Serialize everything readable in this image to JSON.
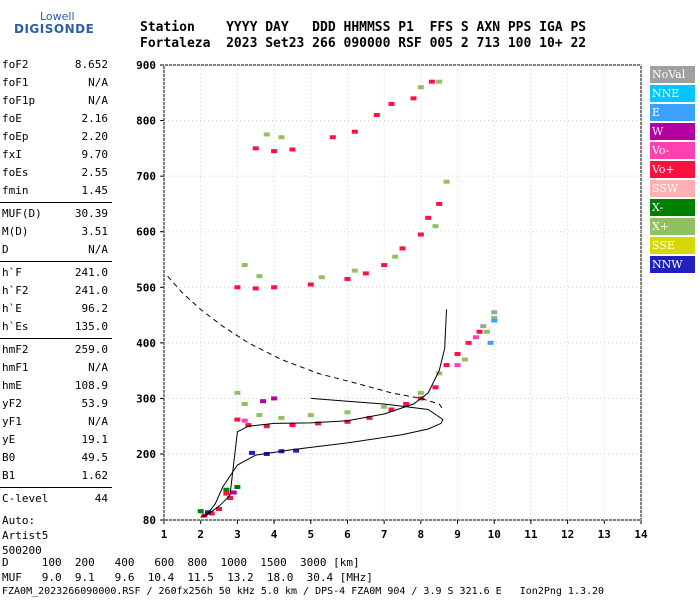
{
  "logo": {
    "line1": "Lowell",
    "line2": "DIGISONDE"
  },
  "header": {
    "line1": "Station    YYYY DAY   DDD HHMMSS P1  FFS S AXN PPS IGA PS",
    "line2": "Fortaleza  2023 Set23 266 090000 RSF 005 2 713 100 10+ 22"
  },
  "params": [
    {
      "name": "foF2",
      "value": "8.652"
    },
    {
      "name": "foF1",
      "value": "N/A"
    },
    {
      "name": "foF1p",
      "value": "N/A"
    },
    {
      "name": "foE",
      "value": "2.16"
    },
    {
      "name": "foEp",
      "value": "2.20"
    },
    {
      "name": "fxI",
      "value": "9.70"
    },
    {
      "name": "foEs",
      "value": "2.55"
    },
    {
      "name": "fmin",
      "value": "1.45"
    },
    {
      "name": "MUF(D)",
      "value": "30.39"
    },
    {
      "name": "M(D)",
      "value": "3.51"
    },
    {
      "name": "D",
      "value": "N/A"
    },
    {
      "name": "h`F",
      "value": "241.0"
    },
    {
      "name": "h`F2",
      "value": "241.0"
    },
    {
      "name": "h`E",
      "value": "96.2"
    },
    {
      "name": "h`Es",
      "value": "135.0"
    },
    {
      "name": "hmF2",
      "value": "259.0"
    },
    {
      "name": "hmF1",
      "value": "N/A"
    },
    {
      "name": "hmE",
      "value": "108.9"
    },
    {
      "name": "yF2",
      "value": "53.9"
    },
    {
      "name": "yF1",
      "value": "N/A"
    },
    {
      "name": "yE",
      "value": "19.1"
    },
    {
      "name": "B0",
      "value": "49.5"
    },
    {
      "name": "B1",
      "value": "1.62"
    },
    {
      "name": "C-level",
      "value": "44"
    }
  ],
  "auto": {
    "line1": "Auto:",
    "line2": "Artist5",
    "line3": "500200"
  },
  "legend": [
    {
      "label": "NoVal",
      "color": "#a0a0a0"
    },
    {
      "label": "NNE",
      "color": "#00c8ff"
    },
    {
      "label": "E",
      "color": "#3ca0ff"
    },
    {
      "label": "W",
      "color": "#b400a0"
    },
    {
      "label": "Vo-",
      "color": "#ff40b0"
    },
    {
      "label": "Vo+",
      "color": "#ff1040"
    },
    {
      "label": "SSW",
      "color": "#ffb0b0"
    },
    {
      "label": "X-",
      "color": "#008000"
    },
    {
      "label": "X+",
      "color": "#90c060"
    },
    {
      "label": "SSE",
      "color": "#d8d800"
    },
    {
      "label": "NNW",
      "color": "#2020c0"
    }
  ],
  "bottom": {
    "d_row": "D     100  200   400   600  800  1000  1500  3000 [km]",
    "muf_row": "MUF   9.0  9.1   9.6  10.4  11.5  13.2  18.0  30.4 [MHz]",
    "footer": "FZA0M_2023266090000.RSF / 260fx256h 50 kHz 5.0 km / DPS-4 FZA0M 904 / 3.9 S 321.6 E   Ion2Png 1.3.20"
  },
  "chart_data": {
    "type": "scatter",
    "xlim": [
      1,
      14
    ],
    "ylim": [
      80,
      900
    ],
    "x_ticks": [
      "1",
      "2",
      "3",
      "4",
      "5",
      "6",
      "7",
      "8",
      "9",
      "10",
      "11",
      "12",
      "13",
      "14"
    ],
    "y_ticks": [
      "80",
      "200",
      "300",
      "400",
      "500",
      "600",
      "700",
      "800",
      "900"
    ],
    "grid": true,
    "series": [
      {
        "name": "Vo+",
        "color": "#ff1040",
        "points": [
          [
            2.1,
            88
          ],
          [
            2.3,
            92
          ],
          [
            2.5,
            100
          ],
          [
            2.8,
            120
          ],
          [
            2.7,
            128
          ],
          [
            3.0,
            262
          ],
          [
            3.3,
            252
          ],
          [
            3.8,
            250
          ],
          [
            4.5,
            252
          ],
          [
            5.2,
            255
          ],
          [
            6.0,
            258
          ],
          [
            6.6,
            265
          ],
          [
            7.2,
            280
          ],
          [
            7.6,
            290
          ],
          [
            8.0,
            300
          ],
          [
            8.4,
            320
          ],
          [
            8.7,
            360
          ],
          [
            9.0,
            380
          ],
          [
            9.3,
            400
          ],
          [
            9.6,
            420
          ],
          [
            3.0,
            500
          ],
          [
            3.5,
            498
          ],
          [
            4.0,
            500
          ],
          [
            5.0,
            505
          ],
          [
            6.0,
            515
          ],
          [
            6.5,
            525
          ],
          [
            7.0,
            540
          ],
          [
            7.5,
            570
          ],
          [
            8.0,
            595
          ],
          [
            8.2,
            625
          ],
          [
            8.5,
            650
          ],
          [
            3.5,
            750
          ],
          [
            4.0,
            745
          ],
          [
            4.5,
            748
          ],
          [
            5.6,
            770
          ],
          [
            6.2,
            780
          ],
          [
            6.8,
            810
          ],
          [
            7.2,
            830
          ],
          [
            7.8,
            840
          ],
          [
            8.3,
            870
          ]
        ]
      },
      {
        "name": "Vo-",
        "color": "#ff40b0",
        "points": [
          [
            3.2,
            260
          ],
          [
            9.0,
            360
          ],
          [
            9.5,
            410
          ]
        ]
      },
      {
        "name": "X+",
        "color": "#90c060",
        "points": [
          [
            3.0,
            310
          ],
          [
            3.2,
            290
          ],
          [
            3.6,
            270
          ],
          [
            4.2,
            265
          ],
          [
            5.0,
            270
          ],
          [
            6.0,
            275
          ],
          [
            7.0,
            285
          ],
          [
            8.0,
            310
          ],
          [
            8.5,
            345
          ],
          [
            9.2,
            370
          ],
          [
            9.8,
            420
          ],
          [
            10.0,
            445
          ],
          [
            3.2,
            540
          ],
          [
            3.6,
            520
          ],
          [
            5.3,
            518
          ],
          [
            6.2,
            530
          ],
          [
            7.3,
            555
          ],
          [
            8.4,
            610
          ],
          [
            8.7,
            690
          ],
          [
            3.8,
            775
          ],
          [
            4.2,
            770
          ],
          [
            8.0,
            860
          ],
          [
            8.5,
            870
          ]
        ]
      },
      {
        "name": "E",
        "color": "#3ca0ff",
        "points": [
          [
            9.9,
            400
          ],
          [
            10.0,
            440
          ]
        ]
      },
      {
        "name": "W",
        "color": "#b400a0",
        "points": [
          [
            3.7,
            295
          ],
          [
            4.0,
            300
          ],
          [
            2.9,
            130
          ]
        ]
      },
      {
        "name": "X-",
        "color": "#008000",
        "points": [
          [
            2.0,
            96
          ],
          [
            2.7,
            135
          ],
          [
            3.0,
            140
          ]
        ]
      },
      {
        "name": "NNW",
        "color": "#2020c0",
        "points": [
          [
            2.2,
            94
          ],
          [
            3.4,
            202
          ],
          [
            3.8,
            200
          ],
          [
            4.2,
            205
          ],
          [
            4.6,
            206
          ]
        ]
      },
      {
        "name": "NoVal",
        "color": "#a0a0a0",
        "points": [
          [
            10.0,
            455
          ],
          [
            9.7,
            430
          ]
        ]
      }
    ],
    "lines": [
      {
        "name": "profile",
        "dashed": false,
        "points": [
          [
            2.0,
            85
          ],
          [
            2.2,
            92
          ],
          [
            2.4,
            110
          ],
          [
            2.6,
            140
          ],
          [
            3.0,
            180
          ],
          [
            3.5,
            198
          ],
          [
            4.5,
            208
          ],
          [
            6.0,
            220
          ],
          [
            7.5,
            235
          ],
          [
            8.2,
            245
          ],
          [
            8.55,
            255
          ],
          [
            8.6,
            262
          ],
          [
            8.2,
            280
          ],
          [
            7.0,
            290
          ],
          [
            6.0,
            295
          ],
          [
            5.0,
            300
          ]
        ]
      },
      {
        "name": "trace",
        "dashed": false,
        "points": [
          [
            2.1,
            86
          ],
          [
            2.5,
            105
          ],
          [
            2.8,
            125
          ],
          [
            3.0,
            240
          ],
          [
            3.3,
            250
          ],
          [
            4.0,
            255
          ],
          [
            5.0,
            256
          ],
          [
            6.0,
            260
          ],
          [
            7.0,
            272
          ],
          [
            7.8,
            290
          ],
          [
            8.2,
            310
          ],
          [
            8.5,
            350
          ],
          [
            8.65,
            390
          ],
          [
            8.7,
            460
          ]
        ]
      },
      {
        "name": "MUF",
        "dashed": true,
        "points": [
          [
            1.1,
            520
          ],
          [
            1.5,
            490
          ],
          [
            2.0,
            460
          ],
          [
            2.6,
            430
          ],
          [
            3.3,
            400
          ],
          [
            4.2,
            370
          ],
          [
            5.2,
            345
          ],
          [
            6.2,
            328
          ],
          [
            7.2,
            310
          ],
          [
            8.0,
            300
          ],
          [
            8.5,
            290
          ],
          [
            8.6,
            280
          ]
        ]
      }
    ]
  }
}
